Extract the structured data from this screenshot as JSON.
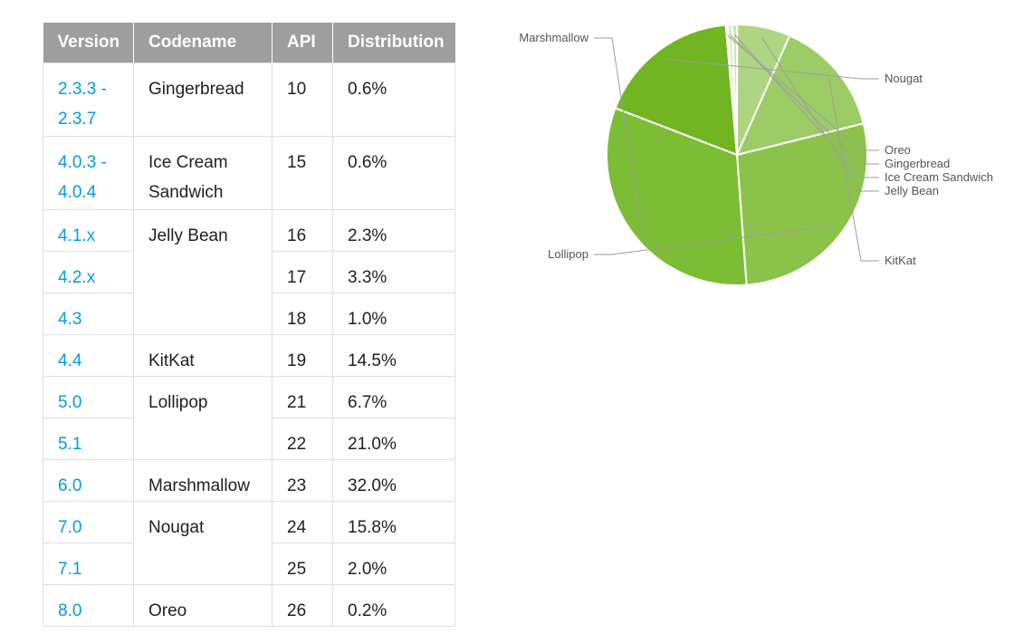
{
  "table": {
    "headers": {
      "version": "Version",
      "codename": "Codename",
      "api": "API",
      "distribution": "Distribution"
    },
    "rows": [
      {
        "version": "2.3.3 - 2.3.7",
        "codename": "Gingerbread",
        "api": "10",
        "distribution": "0.6%"
      },
      {
        "version": "4.0.3 - 4.0.4",
        "codename": "Ice Cream Sandwich",
        "api": "15",
        "distribution": "0.6%"
      },
      {
        "version": "4.1.x",
        "codename": "Jelly Bean",
        "api": "16",
        "distribution": "2.3%"
      },
      {
        "version": "4.2.x",
        "codename": "",
        "api": "17",
        "distribution": "3.3%"
      },
      {
        "version": "4.3",
        "codename": "",
        "api": "18",
        "distribution": "1.0%"
      },
      {
        "version": "4.4",
        "codename": "KitKat",
        "api": "19",
        "distribution": "14.5%"
      },
      {
        "version": "5.0",
        "codename": "Lollipop",
        "api": "21",
        "distribution": "6.7%"
      },
      {
        "version": "5.1",
        "codename": "",
        "api": "22",
        "distribution": "21.0%"
      },
      {
        "version": "6.0",
        "codename": "Marshmallow",
        "api": "23",
        "distribution": "32.0%"
      },
      {
        "version": "7.0",
        "codename": "Nougat",
        "api": "24",
        "distribution": "15.8%"
      },
      {
        "version": "7.1",
        "codename": "",
        "api": "25",
        "distribution": "2.0%"
      },
      {
        "version": "8.0",
        "codename": "Oreo",
        "api": "26",
        "distribution": "0.2%"
      }
    ]
  },
  "chart_data": {
    "type": "pie",
    "title": "",
    "slices": [
      {
        "label": "Nougat",
        "value": 17.8,
        "color": "#72b523"
      },
      {
        "label": "Oreo",
        "value": 0.2,
        "color": "#e6f2d9"
      },
      {
        "label": "Gingerbread",
        "value": 0.6,
        "color": "#dcedc8"
      },
      {
        "label": "Ice Cream Sandwich",
        "value": 0.6,
        "color": "#cde5b0"
      },
      {
        "label": "Jelly Bean",
        "value": 6.6,
        "color": "#aed581"
      },
      {
        "label": "KitKat",
        "value": 14.5,
        "color": "#9ccc65"
      },
      {
        "label": "Lollipop",
        "value": 27.7,
        "color": "#8bc34a"
      },
      {
        "label": "Marshmallow",
        "value": 32.0,
        "color": "#7cbd35"
      }
    ]
  }
}
